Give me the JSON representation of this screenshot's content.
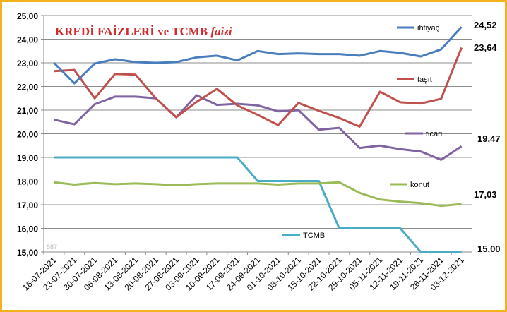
{
  "chart_data": {
    "type": "line",
    "title_main": "KREDİ FAİZLERİ ve TCMB",
    "title_italic": "faizi",
    "ylim": [
      15,
      25
    ],
    "ytick_step": 1,
    "grid": "horizontal",
    "plot_note": "587",
    "x": [
      "16-07-2021",
      "23-07-2021",
      "30-07-2021",
      "06-08-2021",
      "13-08-2021",
      "20-08-2021",
      "27-08-2021",
      "03-09-2021",
      "10-09-2021",
      "17-09-2021",
      "24-09-2021",
      "01-10-2021",
      "08-10-2021",
      "15-10-2021",
      "22-10-2021",
      "29-10-2021",
      "05-11-2021",
      "12-11-2021",
      "19-11-2021",
      "26-11-2021",
      "03-12-2021"
    ],
    "series": [
      {
        "key": "ihtiyac",
        "name": "ihtiyaç",
        "color": "#4a7dbe",
        "end_label": "24,52",
        "values": [
          23.0,
          22.13,
          22.97,
          23.15,
          23.03,
          23.0,
          23.03,
          23.23,
          23.3,
          23.1,
          23.5,
          23.37,
          23.4,
          23.37,
          23.37,
          23.3,
          23.5,
          23.42,
          23.27,
          23.57,
          24.52
        ]
      },
      {
        "key": "tasit",
        "name": "taşıt",
        "color": "#c0504d",
        "end_label": "23,64",
        "values": [
          22.65,
          22.7,
          21.5,
          22.53,
          22.5,
          21.5,
          20.7,
          21.35,
          21.9,
          21.2,
          20.8,
          20.37,
          21.3,
          20.97,
          20.67,
          20.3,
          21.78,
          21.33,
          21.28,
          21.48,
          23.64
        ]
      },
      {
        "key": "ticari",
        "name": "ticari",
        "color": "#8064a2",
        "end_label": "19,47",
        "values": [
          20.6,
          20.4,
          21.25,
          21.57,
          21.57,
          21.5,
          20.7,
          21.63,
          21.22,
          21.27,
          21.2,
          20.95,
          21.0,
          20.17,
          20.25,
          19.4,
          19.5,
          19.35,
          19.25,
          18.9,
          19.47
        ]
      },
      {
        "key": "konut",
        "name": "konut",
        "color": "#9bbb59",
        "end_label": "17,03",
        "values": [
          17.95,
          17.85,
          17.92,
          17.87,
          17.9,
          17.87,
          17.82,
          17.87,
          17.9,
          17.9,
          17.9,
          17.85,
          17.9,
          17.9,
          17.95,
          17.5,
          17.22,
          17.13,
          17.07,
          16.95,
          17.03
        ]
      },
      {
        "key": "tcmb",
        "name": "TCMB",
        "color": "#4bacc6",
        "end_label": "15,00",
        "values": [
          19,
          19,
          19,
          19,
          19,
          19,
          19,
          19,
          19,
          19,
          18,
          18,
          18,
          18,
          16,
          16,
          16,
          16,
          15,
          15,
          15
        ]
      }
    ]
  }
}
